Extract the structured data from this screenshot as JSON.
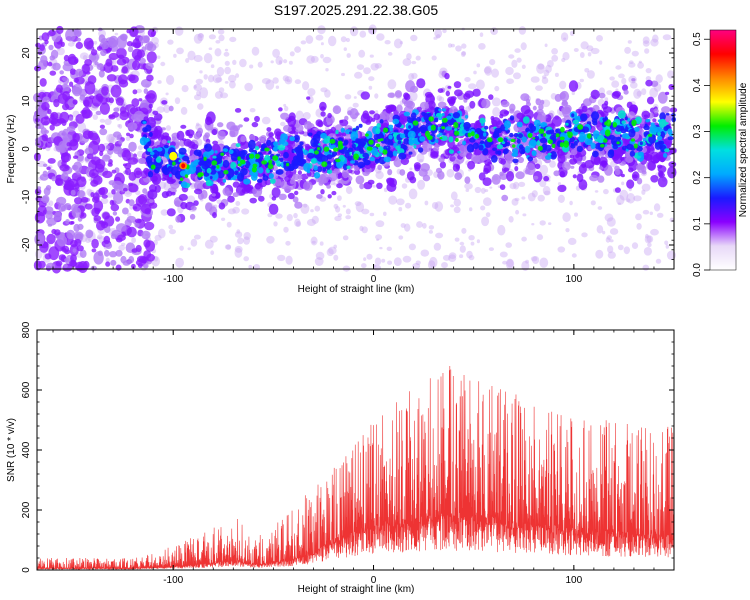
{
  "title": "S197.2025.291.22.38.G05",
  "chart_data": [
    {
      "type": "heatmap",
      "xlabel": "Height of straight line (km)",
      "ylabel": "Frequency (Hz)",
      "xlim": [
        -168,
        150
      ],
      "ylim": [
        -25,
        25
      ],
      "xticks": [
        -100,
        0,
        100
      ],
      "yticks": [
        -20,
        -10,
        0,
        10,
        20
      ],
      "colorbar": {
        "label": "Normalized spectral amplitude",
        "range": [
          0,
          0.52
        ],
        "ticks": [
          0.0,
          0.1,
          0.2,
          0.3,
          0.4,
          0.5
        ],
        "colormap": [
          "#ffffff",
          "#e8d8f8",
          "#8a00ff",
          "#1a1aff",
          "#00aaff",
          "#00e0e0",
          "#00ee00",
          "#ffff00",
          "#ff8800",
          "#ff0000",
          "#ff0080"
        ]
      },
      "band_center_hz": [
        {
          "x": -112,
          "y": -1
        },
        {
          "x": -95,
          "y": -4
        },
        {
          "x": -70,
          "y": -3
        },
        {
          "x": -40,
          "y": -2
        },
        {
          "x": 0,
          "y": 1
        },
        {
          "x": 30,
          "y": 5
        },
        {
          "x": 60,
          "y": 2
        },
        {
          "x": 100,
          "y": 3
        },
        {
          "x": 150,
          "y": 3
        }
      ]
    },
    {
      "type": "line",
      "xlabel": "Height of straight line (km)",
      "ylabel": "SNR (10 * v/v)",
      "xlim": [
        -168,
        150
      ],
      "ylim": [
        0,
        800
      ],
      "xticks": [
        -100,
        0,
        100
      ],
      "yticks": [
        0,
        200,
        400,
        600,
        800
      ],
      "series": [
        {
          "color": "#ee3333",
          "envelope": [
            {
              "x": -168,
              "base": 5,
              "peak": 40
            },
            {
              "x": -120,
              "base": 5,
              "peak": 40
            },
            {
              "x": -100,
              "base": 10,
              "peak": 80
            },
            {
              "x": -80,
              "base": 20,
              "peak": 140
            },
            {
              "x": -70,
              "base": 30,
              "peak": 200
            },
            {
              "x": -60,
              "base": 15,
              "peak": 100
            },
            {
              "x": -45,
              "base": 25,
              "peak": 180
            },
            {
              "x": -30,
              "base": 50,
              "peak": 280
            },
            {
              "x": -20,
              "base": 90,
              "peak": 340
            },
            {
              "x": -10,
              "base": 110,
              "peak": 420
            },
            {
              "x": 0,
              "base": 130,
              "peak": 500
            },
            {
              "x": 20,
              "base": 150,
              "peak": 620
            },
            {
              "x": 40,
              "base": 160,
              "peak": 700
            },
            {
              "x": 60,
              "base": 150,
              "peak": 640
            },
            {
              "x": 80,
              "base": 130,
              "peak": 560
            },
            {
              "x": 100,
              "base": 120,
              "peak": 520
            },
            {
              "x": 120,
              "base": 110,
              "peak": 500
            },
            {
              "x": 150,
              "base": 100,
              "peak": 480
            }
          ]
        }
      ]
    }
  ]
}
